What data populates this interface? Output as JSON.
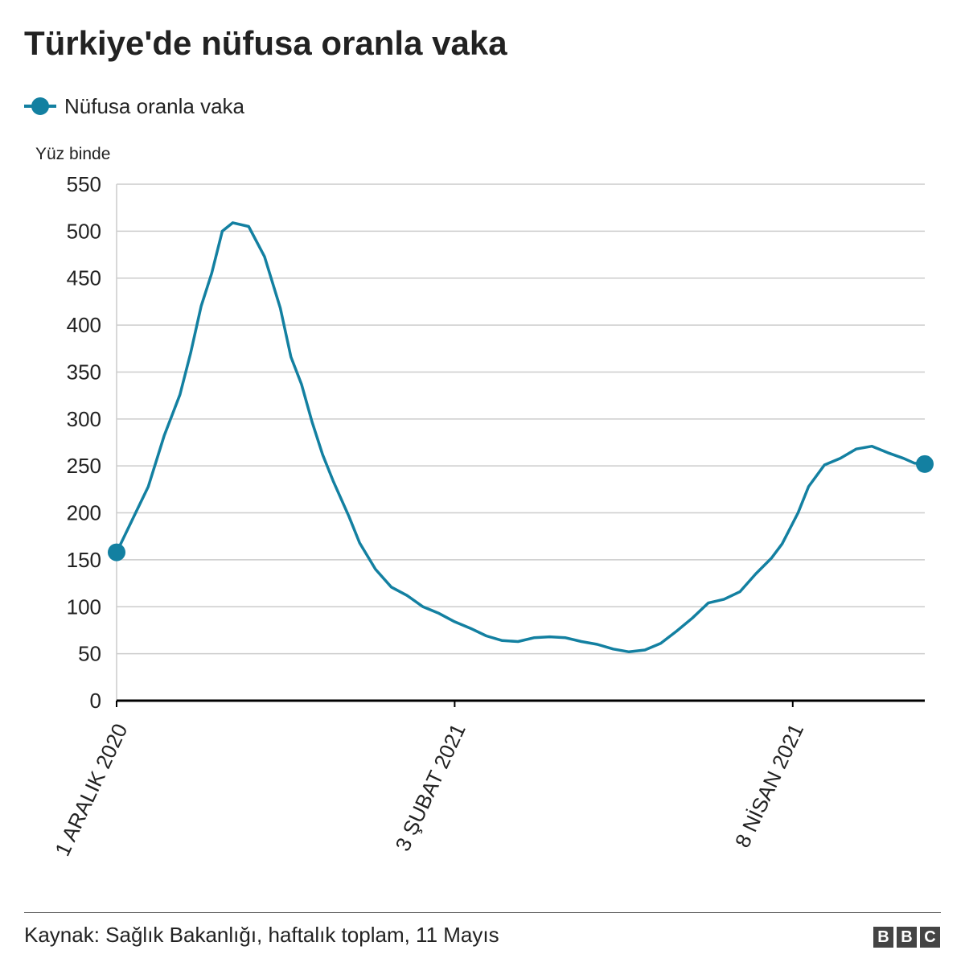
{
  "title": "Türkiye'de nüfusa oranla vaka",
  "colors": {
    "series": "#1380a1",
    "grid": "#cccccc",
    "axis": "#000000",
    "text": "#222222"
  },
  "chart_data": {
    "type": "line",
    "ylabel": "Yüz binde",
    "ylim": [
      0,
      550
    ],
    "yticks": [
      0,
      50,
      100,
      150,
      200,
      250,
      300,
      350,
      400,
      450,
      500,
      550
    ],
    "xlim": [
      "2020-12-01",
      "2021-05-11"
    ],
    "xticks": [
      {
        "date": "2020-12-01",
        "label": "1 ARALIK 2020"
      },
      {
        "date": "2021-02-03",
        "label": "3 ŞUBAT 2021"
      },
      {
        "date": "2021-04-08",
        "label": "8 NİSAN 2021"
      }
    ],
    "grid": true,
    "legend_position": "top-left",
    "series": [
      {
        "name": "Nüfusa oranla vaka",
        "color": "#1380a1",
        "endpoint_markers": true,
        "points": [
          [
            "2020-12-01",
            158
          ],
          [
            "2020-12-04",
            193
          ],
          [
            "2020-12-07",
            228
          ],
          [
            "2020-12-10",
            282
          ],
          [
            "2020-12-13",
            326
          ],
          [
            "2020-12-15",
            370
          ],
          [
            "2020-12-17",
            420
          ],
          [
            "2020-12-19",
            455
          ],
          [
            "2020-12-21",
            500
          ],
          [
            "2020-12-23",
            509
          ],
          [
            "2020-12-26",
            505
          ],
          [
            "2020-12-29",
            473
          ],
          [
            "2021-01-01",
            418
          ],
          [
            "2021-01-03",
            366
          ],
          [
            "2021-01-05",
            337
          ],
          [
            "2021-01-07",
            297
          ],
          [
            "2021-01-09",
            262
          ],
          [
            "2021-01-11",
            234
          ],
          [
            "2021-01-14",
            196
          ],
          [
            "2021-01-16",
            168
          ],
          [
            "2021-01-19",
            140
          ],
          [
            "2021-01-22",
            121
          ],
          [
            "2021-01-25",
            112
          ],
          [
            "2021-01-28",
            100
          ],
          [
            "2021-01-31",
            93
          ],
          [
            "2021-02-03",
            84
          ],
          [
            "2021-02-06",
            77
          ],
          [
            "2021-02-09",
            69
          ],
          [
            "2021-02-12",
            64
          ],
          [
            "2021-02-15",
            63
          ],
          [
            "2021-02-18",
            67
          ],
          [
            "2021-02-21",
            68
          ],
          [
            "2021-02-24",
            67
          ],
          [
            "2021-02-27",
            63
          ],
          [
            "2021-03-02",
            60
          ],
          [
            "2021-03-05",
            55
          ],
          [
            "2021-03-08",
            52
          ],
          [
            "2021-03-11",
            54
          ],
          [
            "2021-03-14",
            61
          ],
          [
            "2021-03-17",
            74
          ],
          [
            "2021-03-20",
            88
          ],
          [
            "2021-03-23",
            104
          ],
          [
            "2021-03-26",
            108
          ],
          [
            "2021-03-29",
            116
          ],
          [
            "2021-04-01",
            135
          ],
          [
            "2021-04-04",
            152
          ],
          [
            "2021-04-06",
            167
          ],
          [
            "2021-04-09",
            200
          ],
          [
            "2021-04-11",
            228
          ],
          [
            "2021-04-14",
            251
          ],
          [
            "2021-04-17",
            258
          ],
          [
            "2021-04-20",
            268
          ],
          [
            "2021-04-23",
            271
          ],
          [
            "2021-04-26",
            264
          ],
          [
            "2021-04-29",
            258
          ],
          [
            "2021-05-01",
            253
          ],
          [
            "2021-05-03",
            252
          ]
        ]
      }
    ]
  },
  "source": "Kaynak: Sağlık Bakanlığı, haftalık toplam, 11 Mayıs",
  "logo": [
    "B",
    "B",
    "C"
  ]
}
